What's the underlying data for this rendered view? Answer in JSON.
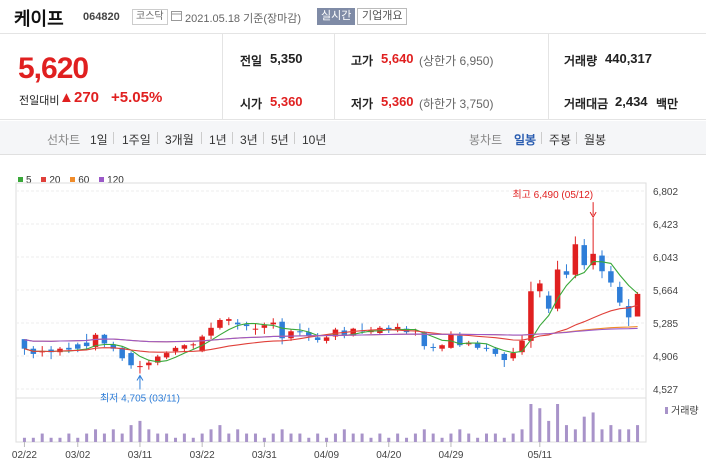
{
  "header": {
    "name": "케이프",
    "code": "064820",
    "market": "코스닥",
    "date": "2021.05.18  기준(장마감)",
    "realtime": "실시간",
    "company_info": "기업개요"
  },
  "summary": {
    "price": "5,620",
    "change_label": "전일대비",
    "change_arrow": "▲",
    "change": "270",
    "change_pct": "+5.05%",
    "prev_label": "전일",
    "prev": "5,350",
    "open_label": "시가",
    "open": "5,360",
    "high_label": "고가",
    "high": "5,640",
    "high_sub": "(상한가 6,950)",
    "low_label": "저가",
    "low": "5,360",
    "low_sub": "(하한가 3,750)",
    "volume_label": "거래량",
    "volume": "440,317",
    "amount_label": "거래대금",
    "amount": "2,434",
    "amount_unit": "백만"
  },
  "toolbar": {
    "line_label": "선차트",
    "ranges": [
      "1일",
      "1주일",
      "3개월",
      "1년",
      "3년",
      "5년",
      "10년"
    ],
    "candle_label": "봉차트",
    "candles": [
      "일봉",
      "주봉",
      "월봉"
    ],
    "candle_selected": "일봉"
  },
  "colors": {
    "up": "#e02020",
    "down": "#2f7ed8",
    "accent": "#2a5db0"
  },
  "chart_data": {
    "type": "candlestick",
    "legend": [
      {
        "name": "5",
        "color": "#3aa83a"
      },
      {
        "name": "20",
        "color": "#e0403a"
      },
      {
        "name": "60",
        "color": "#f08c2a"
      },
      {
        "name": "120",
        "color": "#9b59c8"
      }
    ],
    "y_ticks": [
      "6,802",
      "6,423",
      "6,043",
      "5,664",
      "5,285",
      "4,906",
      "4,527"
    ],
    "ylim": [
      4527,
      6802
    ],
    "x_ticks": [
      "02/22",
      "03/02",
      "03/11",
      "03/22",
      "03/31",
      "04/09",
      "04/20",
      "04/29",
      "05/11"
    ],
    "high_annotation": "최고 6,490 (05/12)",
    "low_annotation": "최저 4,705 (03/11)",
    "volume_label": "거래량",
    "candles": [
      [
        5100,
        5100,
        4920,
        4990
      ],
      [
        4990,
        5020,
        4880,
        4930
      ],
      [
        4950,
        5020,
        4900,
        4960
      ],
      [
        4980,
        5020,
        4870,
        4950
      ],
      [
        4950,
        5010,
        4910,
        4990
      ],
      [
        5000,
        5060,
        4940,
        4980
      ],
      [
        5040,
        5060,
        4950,
        4990
      ],
      [
        5060,
        5160,
        4990,
        5020
      ],
      [
        5010,
        5170,
        4970,
        5150
      ],
      [
        5150,
        5160,
        5010,
        5050
      ],
      [
        5040,
        5070,
        4960,
        4990
      ],
      [
        5000,
        5020,
        4850,
        4880
      ],
      [
        4940,
        4960,
        4760,
        4800
      ],
      [
        4780,
        4850,
        4705,
        4790
      ],
      [
        4800,
        4860,
        4750,
        4830
      ],
      [
        4830,
        4920,
        4800,
        4900
      ],
      [
        4890,
        4960,
        4870,
        4940
      ],
      [
        4960,
        5020,
        4920,
        5000
      ],
      [
        4990,
        5040,
        4950,
        5030
      ],
      [
        5030,
        5060,
        4990,
        5040
      ],
      [
        4960,
        5150,
        4950,
        5130
      ],
      [
        5140,
        5290,
        5100,
        5230
      ],
      [
        5230,
        5340,
        5210,
        5320
      ],
      [
        5310,
        5350,
        5260,
        5330
      ],
      [
        5290,
        5330,
        5210,
        5270
      ],
      [
        5270,
        5300,
        5200,
        5250
      ],
      [
        5220,
        5280,
        5150,
        5220
      ],
      [
        5230,
        5290,
        5160,
        5260
      ],
      [
        5270,
        5340,
        5220,
        5290
      ],
      [
        5300,
        5340,
        5040,
        5110
      ],
      [
        5110,
        5210,
        5080,
        5190
      ],
      [
        5190,
        5280,
        5140,
        5180
      ],
      [
        5180,
        5230,
        5080,
        5140
      ],
      [
        5120,
        5170,
        5060,
        5090
      ],
      [
        5080,
        5140,
        5050,
        5120
      ],
      [
        5130,
        5230,
        5090,
        5210
      ],
      [
        5200,
        5240,
        5110,
        5140
      ],
      [
        5140,
        5230,
        5130,
        5220
      ],
      [
        5200,
        5280,
        5160,
        5190
      ],
      [
        5180,
        5240,
        5160,
        5200
      ],
      [
        5170,
        5250,
        5160,
        5230
      ],
      [
        5230,
        5260,
        5170,
        5200
      ],
      [
        5200,
        5280,
        5180,
        5240
      ],
      [
        5220,
        5250,
        5160,
        5180
      ],
      [
        5190,
        5220,
        5140,
        5200
      ],
      [
        5180,
        5190,
        4980,
        5020
      ],
      [
        5010,
        5050,
        4960,
        5000
      ],
      [
        4990,
        5040,
        4960,
        5030
      ],
      [
        5000,
        5190,
        4990,
        5150
      ],
      [
        5140,
        5180,
        5010,
        5030
      ],
      [
        5040,
        5080,
        5020,
        5060
      ],
      [
        5060,
        5080,
        4980,
        5000
      ],
      [
        5000,
        5040,
        4960,
        4990
      ],
      [
        4990,
        5010,
        4900,
        4930
      ],
      [
        4930,
        4950,
        4780,
        4860
      ],
      [
        4880,
        5000,
        4850,
        4940
      ],
      [
        4950,
        5150,
        4920,
        5080
      ],
      [
        5080,
        5760,
        5000,
        5650
      ],
      [
        5650,
        5780,
        5580,
        5740
      ],
      [
        5600,
        5650,
        5400,
        5450
      ],
      [
        5450,
        6000,
        5420,
        5900
      ],
      [
        5880,
        5960,
        5800,
        5840
      ],
      [
        5840,
        6280,
        5800,
        6190
      ],
      [
        6180,
        6250,
        5900,
        5950
      ],
      [
        5950,
        6490,
        5900,
        6080
      ],
      [
        6060,
        6120,
        5800,
        5880
      ],
      [
        5880,
        5940,
        5700,
        5750
      ],
      [
        5700,
        5760,
        5480,
        5520
      ],
      [
        5480,
        5560,
        5250,
        5350
      ],
      [
        5360,
        5640,
        5360,
        5620
      ]
    ],
    "volumes": [
      1,
      1,
      2,
      1,
      1,
      2,
      1,
      2,
      3,
      2,
      3,
      2,
      4,
      5,
      3,
      2,
      2,
      1,
      2,
      1,
      2,
      3,
      4,
      2,
      3,
      2,
      2,
      1,
      2,
      3,
      2,
      2,
      1,
      2,
      1,
      2,
      3,
      2,
      2,
      1,
      2,
      1,
      2,
      1,
      2,
      3,
      2,
      1,
      2,
      3,
      2,
      1,
      2,
      2,
      1,
      2,
      3,
      9,
      8,
      5,
      9,
      4,
      3,
      6,
      7,
      3,
      4,
      3,
      3,
      4
    ]
  }
}
